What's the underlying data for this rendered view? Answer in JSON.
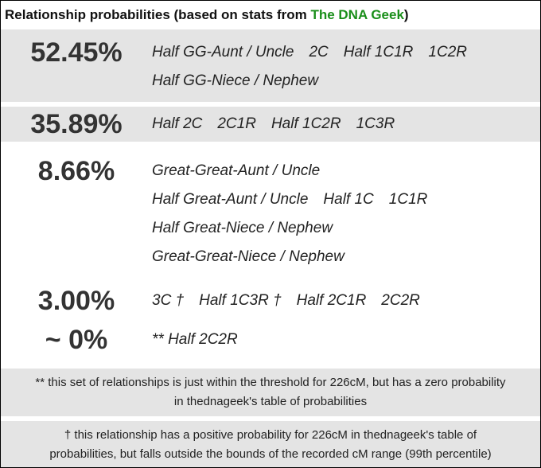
{
  "header": {
    "title_prefix": "Relationship probabilities (based on stats from ",
    "link_text": "The DNA Geek",
    "title_suffix": ")"
  },
  "groups": [
    {
      "percent": "52.45%",
      "shaded": true,
      "lines": [
        [
          "Half GG-Aunt / Uncle",
          "2C",
          "Half 1C1R",
          "1C2R"
        ],
        [
          "Half GG-Niece / Nephew"
        ]
      ]
    },
    {
      "percent": "35.89%",
      "shaded": true,
      "lines": [
        [
          "Half 2C",
          "2C1R",
          "Half 1C2R",
          "1C3R"
        ]
      ]
    },
    {
      "percent": "8.66%",
      "shaded": false,
      "lines": [
        [
          "Great-Great-Aunt / Uncle"
        ],
        [
          "Half Great-Aunt / Uncle",
          "Half 1C",
          "1C1R"
        ],
        [
          "Half Great-Niece / Nephew"
        ],
        [
          "Great-Great-Niece / Nephew"
        ]
      ]
    },
    {
      "percent": "3.00%",
      "shaded": false,
      "lines": [
        [
          "3C †",
          "Half 1C3R †",
          "Half 2C1R",
          "2C2R"
        ]
      ]
    },
    {
      "percent": "~ 0%",
      "shaded": false,
      "lines": [
        [
          "** Half 2C2R"
        ]
      ]
    }
  ],
  "notes": [
    {
      "line1": "** this set of relationships is just within the threshold for 226cM, but has a zero probability",
      "line2": "in thednageek's table of probabilities"
    },
    {
      "line1": "† this relationship has a positive probability for 226cM in thednageek's table of",
      "line2": "probabilities, but falls outside the bounds of the recorded cM range (99th percentile)"
    }
  ],
  "colors": {
    "link": "#1a8f1a",
    "row_shade": "#e4e4e4",
    "border": "#000000"
  }
}
